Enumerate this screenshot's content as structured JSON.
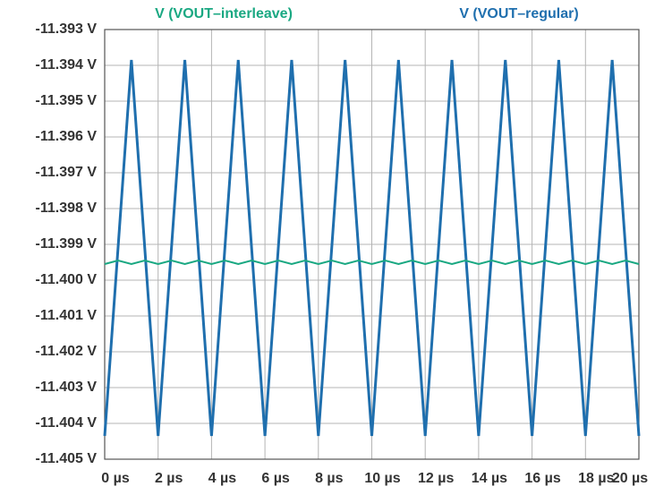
{
  "chart_data": {
    "type": "line",
    "series": [
      {
        "name": "V (VOUT–interleave)",
        "color": "#1aa882",
        "x": [
          0,
          0.5,
          1,
          1.5,
          2,
          2.5,
          3,
          3.5,
          4,
          4.5,
          5,
          5.5,
          6,
          6.5,
          7,
          7.5,
          8,
          8.5,
          9,
          9.5,
          10,
          10.5,
          11,
          11.5,
          12,
          12.5,
          13,
          13.5,
          14,
          14.5,
          15,
          15.5,
          16,
          16.5,
          17,
          17.5,
          18,
          18.5,
          19,
          19.5,
          20
        ],
        "values": [
          -11.39955,
          -11.39945,
          -11.39955,
          -11.39945,
          -11.39955,
          -11.39945,
          -11.39955,
          -11.39945,
          -11.39955,
          -11.39945,
          -11.39955,
          -11.39945,
          -11.39955,
          -11.39945,
          -11.39955,
          -11.39945,
          -11.39955,
          -11.39945,
          -11.39955,
          -11.39945,
          -11.39955,
          -11.39945,
          -11.39955,
          -11.39945,
          -11.39955,
          -11.39945,
          -11.39955,
          -11.39945,
          -11.39955,
          -11.39945,
          -11.39955,
          -11.39945,
          -11.39955,
          -11.39945,
          -11.39955,
          -11.39945,
          -11.39955,
          -11.39945,
          -11.39955,
          -11.39945,
          -11.39955
        ]
      },
      {
        "name": "V (VOUT–regular)",
        "color": "#1f6fae",
        "x": [
          0,
          1,
          2,
          3,
          4,
          5,
          6,
          7,
          8,
          9,
          10,
          11,
          12,
          13,
          14,
          15,
          16,
          17,
          18,
          19,
          20
        ],
        "values": [
          -11.40435,
          -11.39385,
          -11.40435,
          -11.39385,
          -11.40435,
          -11.39385,
          -11.40435,
          -11.39385,
          -11.40435,
          -11.39385,
          -11.40435,
          -11.39385,
          -11.40435,
          -11.39385,
          -11.40435,
          -11.39385,
          -11.40435,
          -11.39385,
          -11.40435,
          -11.39385,
          -11.40435
        ]
      }
    ],
    "xlim": [
      0,
      20
    ],
    "ylim": [
      -11.405,
      -11.393
    ],
    "xticks": [
      {
        "value": 0,
        "label": "0 µs"
      },
      {
        "value": 2,
        "label": "2 µs"
      },
      {
        "value": 4,
        "label": "4 µs"
      },
      {
        "value": 6,
        "label": "6 µs"
      },
      {
        "value": 8,
        "label": "8 µs"
      },
      {
        "value": 10,
        "label": "10 µs"
      },
      {
        "value": 12,
        "label": "12 µs"
      },
      {
        "value": 14,
        "label": "14 µs"
      },
      {
        "value": 16,
        "label": "16 µs"
      },
      {
        "value": 18,
        "label": "18 µs"
      },
      {
        "value": 20,
        "label": "20 µs"
      }
    ],
    "yticks": [
      {
        "value": -11.393,
        "label": "-11.393 V"
      },
      {
        "value": -11.394,
        "label": "-11.394 V"
      },
      {
        "value": -11.395,
        "label": "-11.395 V"
      },
      {
        "value": -11.396,
        "label": "-11.396 V"
      },
      {
        "value": -11.397,
        "label": "-11.397 V"
      },
      {
        "value": -11.398,
        "label": "-11.398 V"
      },
      {
        "value": -11.399,
        "label": "-11.399 V"
      },
      {
        "value": -11.4,
        "label": "-11.400 V"
      },
      {
        "value": -11.401,
        "label": "-11.401 V"
      },
      {
        "value": -11.402,
        "label": "-11.402 V"
      },
      {
        "value": -11.403,
        "label": "-11.403 V"
      },
      {
        "value": -11.404,
        "label": "-11.404 V"
      },
      {
        "value": -11.405,
        "label": "-11.405 V"
      }
    ],
    "grid": true
  }
}
